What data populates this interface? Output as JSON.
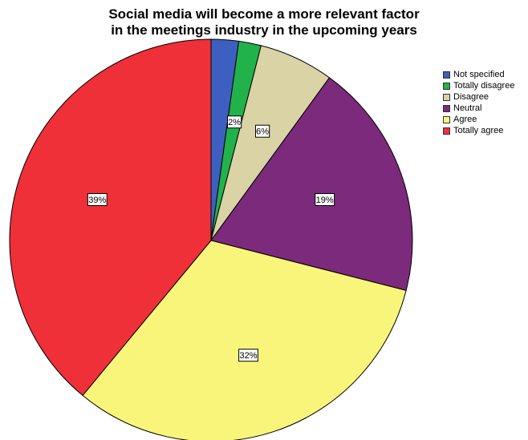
{
  "chart_data": {
    "type": "pie",
    "title": [
      "Social media will become a more relevant factor",
      "in the meetings industry in the upcoming years"
    ],
    "slices": [
      {
        "name": "Not specified",
        "value": 2.2,
        "label": "",
        "color": "#3d5fbf"
      },
      {
        "name": "Totally disagree",
        "value": 1.8,
        "label": "2%",
        "color": "#22b24c"
      },
      {
        "name": "Disagree",
        "value": 6.0,
        "label": "6%",
        "color": "#d9d3a5"
      },
      {
        "name": "Neutral",
        "value": 19.0,
        "label": "19%",
        "color": "#7b2a7c"
      },
      {
        "name": "Agree",
        "value": 32.0,
        "label": "32%",
        "color": "#f8f57a"
      },
      {
        "name": "Totally agree",
        "value": 39.0,
        "label": "39%",
        "color": "#ef3038"
      }
    ],
    "legend_position": "top-right"
  }
}
